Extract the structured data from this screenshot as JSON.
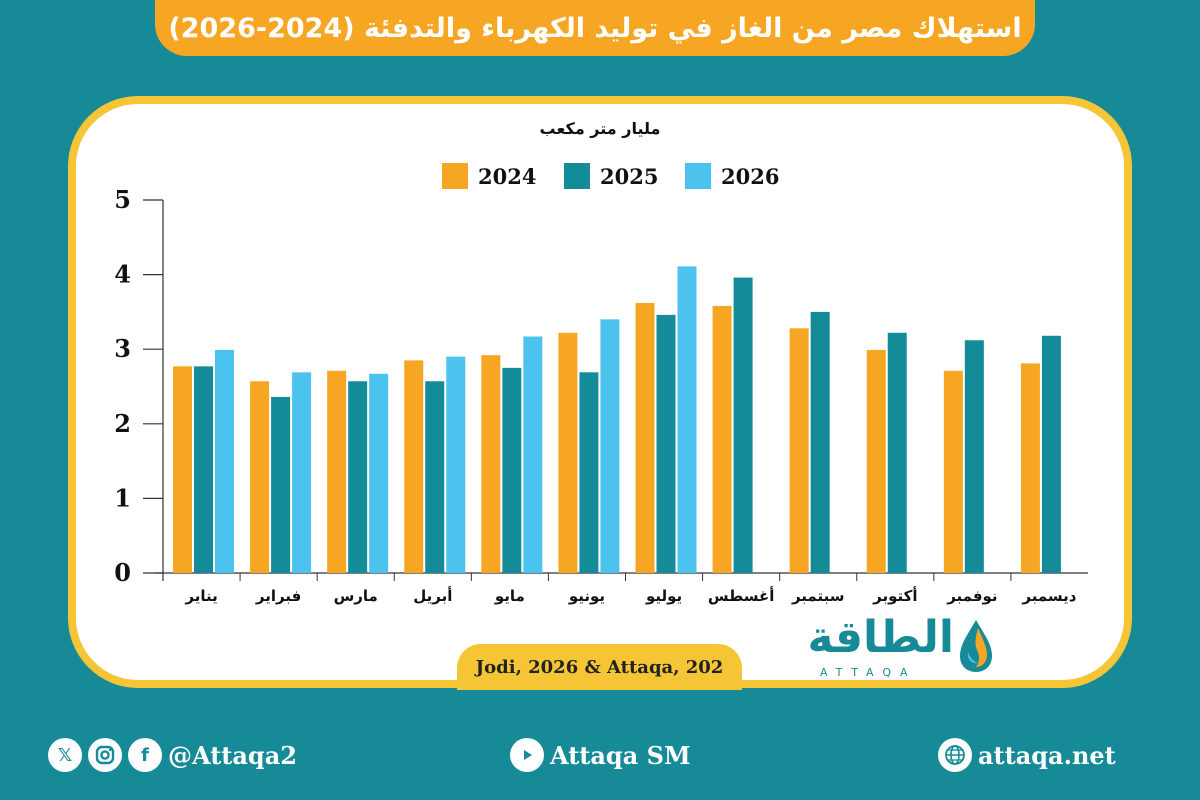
{
  "header": {
    "title": "استهلاك مصر من الغاز في توليد الكهرباء والتدفئة (2024-2026)"
  },
  "chart_data": {
    "type": "bar",
    "ylabel": "مليار متر مكعب",
    "ylim": [
      0,
      5
    ],
    "yticks": [
      0,
      1,
      2,
      3,
      4,
      5
    ],
    "grid": false,
    "legend_position": "top",
    "categories": [
      "يناير",
      "فبراير",
      "مارس",
      "أبريل",
      "مايو",
      "يونيو",
      "يوليو",
      "أغسطس",
      "سبتمبر",
      "أكتوبر",
      "نوفمبر",
      "ديسمبر"
    ],
    "series": [
      {
        "name": "2024",
        "color": "#f6a623",
        "values": [
          2.77,
          2.57,
          2.71,
          2.85,
          2.92,
          3.22,
          3.62,
          3.58,
          3.28,
          2.99,
          2.71,
          2.81
        ]
      },
      {
        "name": "2025",
        "color": "#138b99",
        "values": [
          2.77,
          2.36,
          2.57,
          2.57,
          2.75,
          2.69,
          3.46,
          3.96,
          3.5,
          3.22,
          3.12,
          3.18
        ]
      },
      {
        "name": "2026",
        "color": "#4cc3ee",
        "values": [
          2.99,
          2.69,
          2.67,
          2.9,
          3.17,
          3.4,
          4.11,
          null,
          null,
          null,
          null,
          null
        ]
      }
    ]
  },
  "source": "Jodi, 2026 & Attaqa, 202",
  "logo": {
    "arabic": "الطاقة",
    "english": "ATTAQA"
  },
  "footer": {
    "social_handle": "@Attaqa2",
    "youtube": "Attaqa SM",
    "website": "attaqa.net"
  },
  "icons": [
    "x-icon",
    "instagram-icon",
    "facebook-icon",
    "youtube-icon",
    "globe-icon"
  ]
}
